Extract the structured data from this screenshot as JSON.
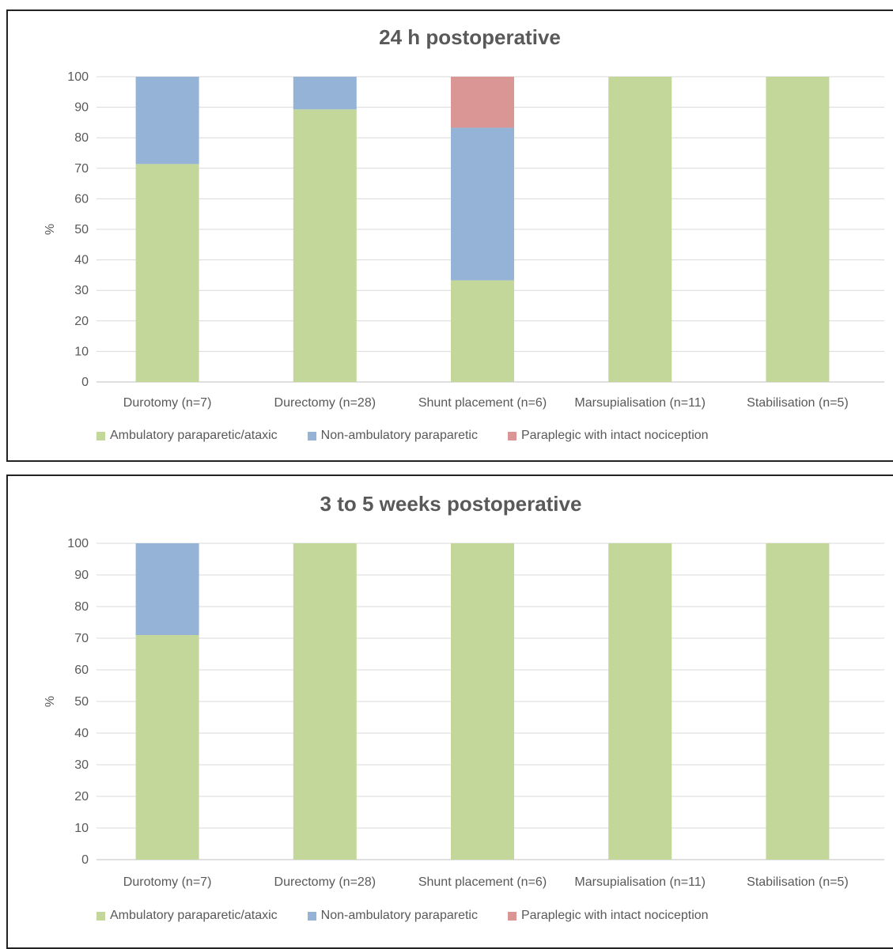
{
  "chart_data": [
    {
      "type": "bar",
      "stacked": true,
      "title": "24 h postoperative",
      "ylabel": "%",
      "xlabel": "",
      "ylim": [
        0,
        100
      ],
      "yticks": [
        "0",
        "10",
        "20",
        "30",
        "40",
        "50",
        "60",
        "70",
        "80",
        "90",
        "100"
      ],
      "grid": true,
      "legend_position": "bottom",
      "categories": [
        "Durotomy (n=7)",
        "Durectomy (n=28)",
        "Shunt placement (n=6)",
        "Marsupialisation (n=11)",
        "Stabilisation (n=5)"
      ],
      "series": [
        {
          "name": "Ambulatory paraparetic/ataxic",
          "color": "#c4d79b",
          "values": [
            71.4,
            89.3,
            33.3,
            100,
            100
          ]
        },
        {
          "name": "Non-ambulatory paraparetic",
          "color": "#95b3d7",
          "values": [
            28.6,
            10.7,
            50.0,
            0,
            0
          ]
        },
        {
          "name": "Paraplegic with intact nociception",
          "color": "#da9694",
          "values": [
            0,
            0,
            16.7,
            0,
            0
          ]
        }
      ]
    },
    {
      "type": "bar",
      "stacked": true,
      "title": "3 to 5 weeks postoperative",
      "ylabel": "%",
      "xlabel": "",
      "ylim": [
        0,
        100
      ],
      "yticks": [
        "0",
        "10",
        "20",
        "30",
        "40",
        "50",
        "60",
        "70",
        "80",
        "90",
        "100"
      ],
      "grid": true,
      "legend_position": "bottom",
      "categories": [
        "Durotomy (n=7)",
        "Durectomy (n=28)",
        "Shunt placement (n=6)",
        "Marsupialisation (n=11)",
        "Stabilisation (n=5)"
      ],
      "series": [
        {
          "name": "Ambulatory paraparetic/ataxic",
          "color": "#c4d79b",
          "values": [
            71,
            100,
            100,
            100,
            100
          ]
        },
        {
          "name": "Non-ambulatory paraparetic",
          "color": "#95b3d7",
          "values": [
            29,
            0,
            0,
            0,
            0
          ]
        },
        {
          "name": "Paraplegic with intact nociception",
          "color": "#da9694",
          "values": [
            0,
            0,
            0,
            0,
            0
          ]
        }
      ]
    }
  ]
}
